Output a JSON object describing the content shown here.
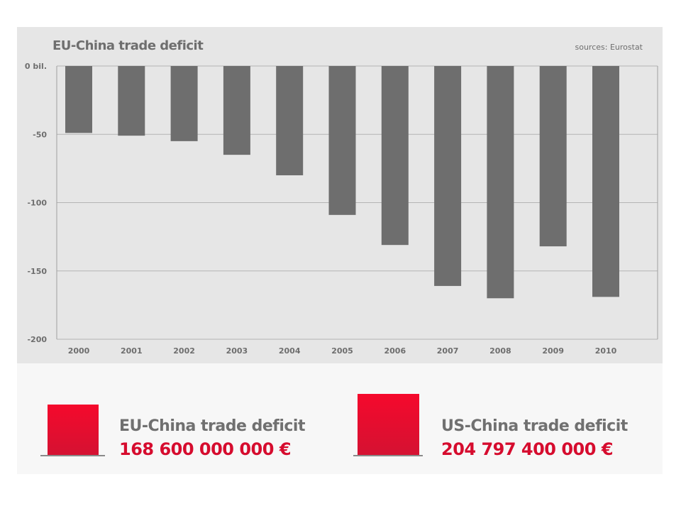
{
  "chart_data": {
    "type": "bar",
    "title": "EU-China trade deficit",
    "source": "sources: Eurostat",
    "xlabel": "",
    "ylabel": "",
    "categories": [
      "2000",
      "2001",
      "2002",
      "2003",
      "2004",
      "2005",
      "2006",
      "2007",
      "2008",
      "2009",
      "2010"
    ],
    "values": [
      -49,
      -51,
      -55,
      -65,
      -80,
      -109,
      -131,
      -161,
      -170,
      -132,
      -169
    ],
    "ylim": [
      -200,
      0
    ],
    "yticks": [
      0,
      -50,
      -100,
      -150,
      -200
    ],
    "ytick_labels": [
      "0 bil.",
      "-50",
      "-100",
      "-150",
      "-200"
    ],
    "grid": true,
    "bar_color": "#6e6e6e"
  },
  "summary": [
    {
      "title": "EU-China trade deficit",
      "value": "168 600 000 000 €"
    },
    {
      "title": "US-China trade deficit",
      "value": "204 797 400 000 €"
    }
  ],
  "colors": {
    "accent": "#d60c2e",
    "panel": "#e6e6e6"
  }
}
